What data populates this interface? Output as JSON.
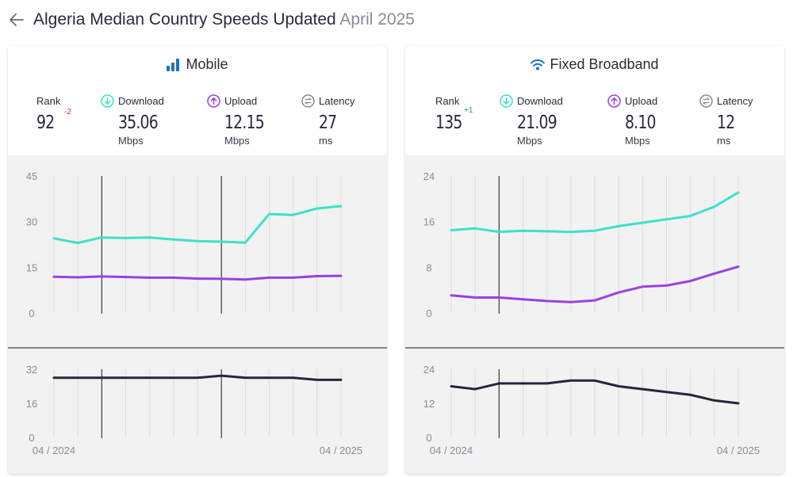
{
  "header": {
    "title": "Algeria Median Country Speeds Updated",
    "date": "April 2025"
  },
  "colors": {
    "download": "#3ee0c8",
    "upload": "#9b40e0",
    "latency": "#252738"
  },
  "mobile": {
    "title": "Mobile",
    "icon": "signal-bars-icon",
    "rank": {
      "label": "Rank",
      "value": "92",
      "change": "-2"
    },
    "download": {
      "label": "Download",
      "value": "35.06",
      "unit": "Mbps"
    },
    "upload": {
      "label": "Upload",
      "value": "12.15",
      "unit": "Mbps"
    },
    "latency": {
      "label": "Latency",
      "value": "27",
      "unit": "ms"
    }
  },
  "fixed": {
    "title": "Fixed Broadband",
    "icon": "wifi-icon",
    "rank": {
      "label": "Rank",
      "value": "135",
      "change": "+1"
    },
    "download": {
      "label": "Download",
      "value": "21.09",
      "unit": "Mbps"
    },
    "upload": {
      "label": "Upload",
      "value": "8.10",
      "unit": "Mbps"
    },
    "latency": {
      "label": "Latency",
      "value": "12",
      "unit": "ms"
    }
  },
  "chart_data": [
    {
      "type": "line",
      "id": "mobile-speed",
      "x": [
        "04 / 2024",
        "05 / 2024",
        "06 / 2024",
        "07 / 2024",
        "08 / 2024",
        "09 / 2024",
        "10 / 2024",
        "11 / 2024",
        "12 / 2024",
        "01 / 2025",
        "02 / 2025",
        "03 / 2025",
        "04 / 2025"
      ],
      "x_tick_labels": [
        "04 / 2024",
        "04 / 2025"
      ],
      "ylim": [
        0,
        45
      ],
      "yticks": [
        "45",
        "30",
        "15",
        "0"
      ],
      "series": [
        {
          "key": "download",
          "values": [
            24.5,
            23.0,
            24.8,
            24.6,
            24.8,
            24.1,
            23.6,
            23.4,
            23.1,
            32.5,
            32.2,
            34.3,
            35.1
          ]
        },
        {
          "key": "upload",
          "values": [
            11.9,
            11.7,
            12.0,
            11.8,
            11.6,
            11.6,
            11.3,
            11.2,
            11.0,
            11.6,
            11.6,
            12.1,
            12.2
          ]
        }
      ],
      "markers_at": [
        "06 / 2024",
        "11 / 2024"
      ]
    },
    {
      "type": "line",
      "id": "mobile-latency",
      "x": [
        "04 / 2024",
        "05 / 2024",
        "06 / 2024",
        "07 / 2024",
        "08 / 2024",
        "09 / 2024",
        "10 / 2024",
        "11 / 2024",
        "12 / 2024",
        "01 / 2025",
        "02 / 2025",
        "03 / 2025",
        "04 / 2025"
      ],
      "ylim": [
        0,
        32
      ],
      "yticks": [
        "32",
        "16",
        "0"
      ],
      "series": [
        {
          "key": "latency",
          "values": [
            28,
            28,
            28,
            28,
            28,
            28,
            28,
            29,
            28,
            28,
            28,
            27,
            27
          ]
        }
      ],
      "markers_at": [
        "06 / 2024",
        "11 / 2024"
      ]
    },
    {
      "type": "line",
      "id": "fixed-speed",
      "x": [
        "04 / 2024",
        "05 / 2024",
        "06 / 2024",
        "07 / 2024",
        "08 / 2024",
        "09 / 2024",
        "10 / 2024",
        "11 / 2024",
        "12 / 2024",
        "01 / 2025",
        "02 / 2025",
        "03 / 2025",
        "04 / 2025"
      ],
      "x_tick_labels": [
        "04 / 2024",
        "04 / 2025"
      ],
      "ylim": [
        0,
        24
      ],
      "yticks": [
        "24",
        "16",
        "8",
        "0"
      ],
      "series": [
        {
          "key": "download",
          "values": [
            14.5,
            14.8,
            14.2,
            14.4,
            14.3,
            14.2,
            14.4,
            15.2,
            15.8,
            16.4,
            17.0,
            18.6,
            21.1
          ]
        },
        {
          "key": "upload",
          "values": [
            3.1,
            2.7,
            2.7,
            2.4,
            2.1,
            1.9,
            2.2,
            3.6,
            4.6,
            4.8,
            5.6,
            6.9,
            8.1
          ]
        }
      ],
      "markers_at": [
        "06 / 2024"
      ]
    },
    {
      "type": "line",
      "id": "fixed-latency",
      "x": [
        "04 / 2024",
        "05 / 2024",
        "06 / 2024",
        "07 / 2024",
        "08 / 2024",
        "09 / 2024",
        "10 / 2024",
        "11 / 2024",
        "12 / 2024",
        "01 / 2025",
        "02 / 2025",
        "03 / 2025",
        "04 / 2025"
      ],
      "ylim": [
        0,
        24
      ],
      "yticks": [
        "24",
        "12",
        "0"
      ],
      "series": [
        {
          "key": "latency",
          "values": [
            18,
            17,
            19,
            19,
            19,
            20,
            20,
            18,
            17,
            16,
            15,
            13,
            12
          ]
        }
      ],
      "markers_at": [
        "06 / 2024"
      ]
    }
  ]
}
